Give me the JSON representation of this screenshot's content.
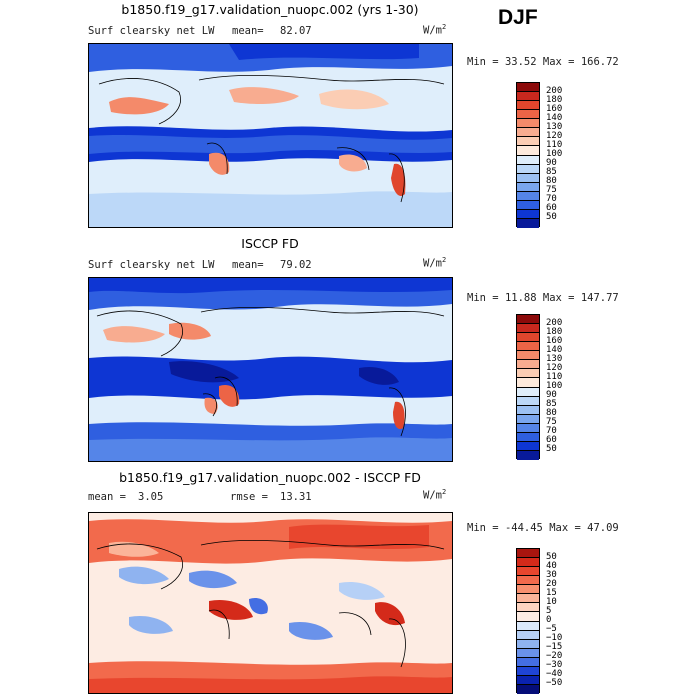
{
  "season": "DJF",
  "panels": [
    {
      "title": "b1850.f19_g17.validation_nuopc.002 (yrs 1-30)",
      "variable": "Surf clearsky net LW",
      "mean_label": "mean=",
      "mean": "82.07",
      "units": "W/m",
      "units_exp": "2",
      "min_label": "Min =",
      "min": "33.52",
      "max_label": "Max =",
      "max": "166.72",
      "colorbar": {
        "levels": [
          "200",
          "180",
          "160",
          "140",
          "130",
          "120",
          "110",
          "100",
          "90",
          "85",
          "80",
          "75",
          "70",
          "60",
          "50"
        ],
        "colors": [
          "#8c0a0a",
          "#c8281e",
          "#e0462d",
          "#ec6446",
          "#f48a6a",
          "#f8ac90",
          "#fbcdb4",
          "#fdeadc",
          "#dfeefb",
          "#bcd8f8",
          "#9cc1f3",
          "#7aa6ee",
          "#5585e8",
          "#2f5fe0",
          "#0e36d3",
          "#081a9a"
        ]
      }
    },
    {
      "title": "ISCCP FD",
      "variable": "Surf clearsky net LW",
      "mean_label": "mean=",
      "mean": "79.02",
      "units": "W/m",
      "units_exp": "2",
      "min_label": "Min =",
      "min": "11.88",
      "max_label": "Max =",
      "max": "147.77",
      "colorbar": {
        "levels": [
          "200",
          "180",
          "160",
          "140",
          "130",
          "120",
          "110",
          "100",
          "90",
          "85",
          "80",
          "75",
          "70",
          "60",
          "50"
        ],
        "colors": [
          "#8c0a0a",
          "#c8281e",
          "#e0462d",
          "#ec6446",
          "#f48a6a",
          "#f8ac90",
          "#fbcdb4",
          "#fdeadc",
          "#dfeefb",
          "#bcd8f8",
          "#9cc1f3",
          "#7aa6ee",
          "#5585e8",
          "#2f5fe0",
          "#0e36d3",
          "#081a9a"
        ]
      }
    },
    {
      "title": "b1850.f19_g17.validation_nuopc.002 - ISCCP FD",
      "mean_label": "mean =",
      "mean": "3.05",
      "rmse_label": "rmse =",
      "rmse": "13.31",
      "units": "W/m",
      "units_exp": "2",
      "min_label": "Min =",
      "min": "-44.45",
      "max_label": "Max =",
      "max": "47.09",
      "colorbar": {
        "levels": [
          "50",
          "40",
          "30",
          "20",
          "15",
          "10",
          "5",
          "0",
          "−5",
          "−10",
          "−15",
          "−20",
          "−30",
          "−40",
          "−50"
        ],
        "colors": [
          "#a8150f",
          "#d42a1a",
          "#e8462e",
          "#f26a4c",
          "#f8906f",
          "#fbb499",
          "#fdd4c1",
          "#fdece3",
          "#dbe9fb",
          "#b6d0f6",
          "#8fb3f0",
          "#6a92ea",
          "#446ee3",
          "#1f44d6",
          "#0a22b0",
          "#050d78"
        ]
      }
    }
  ]
}
